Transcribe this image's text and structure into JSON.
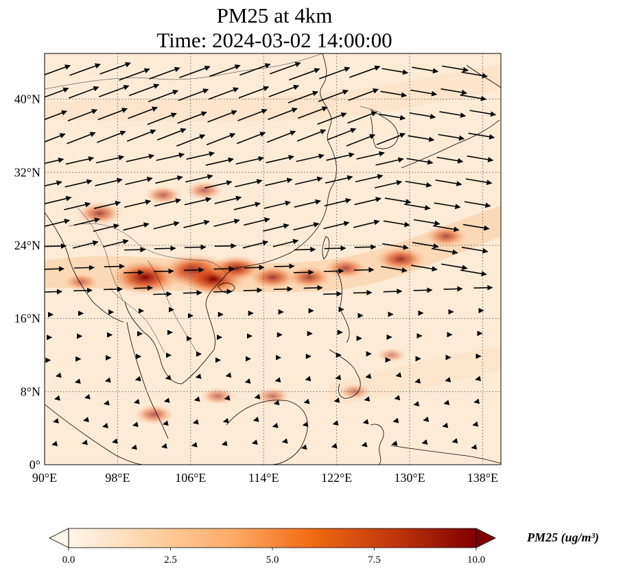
{
  "title": {
    "line1": "PM25 at 4km",
    "line2": "Time: 2024-03-02 14:00:00"
  },
  "map": {
    "extent": {
      "lon": [
        90,
        140
      ],
      "lat": [
        0,
        45
      ]
    },
    "lon_ticks": [
      {
        "value": 90,
        "label": "90°E"
      },
      {
        "value": 98,
        "label": "98°E"
      },
      {
        "value": 106,
        "label": "106°E"
      },
      {
        "value": 114,
        "label": "114°E"
      },
      {
        "value": 122,
        "label": "122°E"
      },
      {
        "value": 130,
        "label": "130°E"
      },
      {
        "value": 138,
        "label": "138°E"
      }
    ],
    "lat_ticks": [
      {
        "value": 0,
        "label": "0°"
      },
      {
        "value": 8,
        "label": "8°N"
      },
      {
        "value": 16,
        "label": "16°N"
      },
      {
        "value": 24,
        "label": "24°N"
      },
      {
        "value": 32,
        "label": "32°N"
      },
      {
        "value": 40,
        "label": "40°N"
      }
    ],
    "gridlines": true,
    "plumes": [
      {
        "lon": 101,
        "lat": 20.5,
        "value": 10.0
      },
      {
        "lon": 106.5,
        "lat": 21.2,
        "value": 9.5
      },
      {
        "lon": 108.5,
        "lat": 20.3,
        "value": 9.0
      },
      {
        "lon": 111,
        "lat": 21.5,
        "value": 6.5
      },
      {
        "lon": 115,
        "lat": 20.5,
        "value": 5.5
      },
      {
        "lon": 119,
        "lat": 20.5,
        "value": 5.0
      },
      {
        "lon": 123,
        "lat": 21.5,
        "value": 4.5
      },
      {
        "lon": 129,
        "lat": 22.5,
        "value": 6.0
      },
      {
        "lon": 134,
        "lat": 25.0,
        "value": 4.5
      },
      {
        "lon": 96,
        "lat": 27.5,
        "value": 5.0
      },
      {
        "lon": 103,
        "lat": 29.5,
        "value": 3.5
      },
      {
        "lon": 107.5,
        "lat": 30.0,
        "value": 3.5
      },
      {
        "lon": 102,
        "lat": 5.5,
        "value": 4.0
      },
      {
        "lon": 109,
        "lat": 7.5,
        "value": 3.0
      },
      {
        "lon": 115,
        "lat": 7.5,
        "value": 3.0
      },
      {
        "lon": 124,
        "lat": 8.0,
        "value": 2.5
      },
      {
        "lon": 94,
        "lat": 20.0,
        "value": 3.0
      },
      {
        "lon": 128,
        "lat": 12.0,
        "value": 2.0
      }
    ]
  },
  "colorbar": {
    "label": "PM25 (ug/m³)",
    "min": 0.0,
    "max": 10.0,
    "extend": "both",
    "ticks": [
      {
        "value": 0.0,
        "label": "0.0"
      },
      {
        "value": 2.5,
        "label": "2.5"
      },
      {
        "value": 5.0,
        "label": "5.0"
      },
      {
        "value": 7.5,
        "label": "7.5"
      },
      {
        "value": 10.0,
        "label": "10.0"
      }
    ],
    "colors": [
      "#fff5eb",
      "#fdd3a7",
      "#fd9243",
      "#df4f1a",
      "#a93003",
      "#7f0000"
    ]
  }
}
